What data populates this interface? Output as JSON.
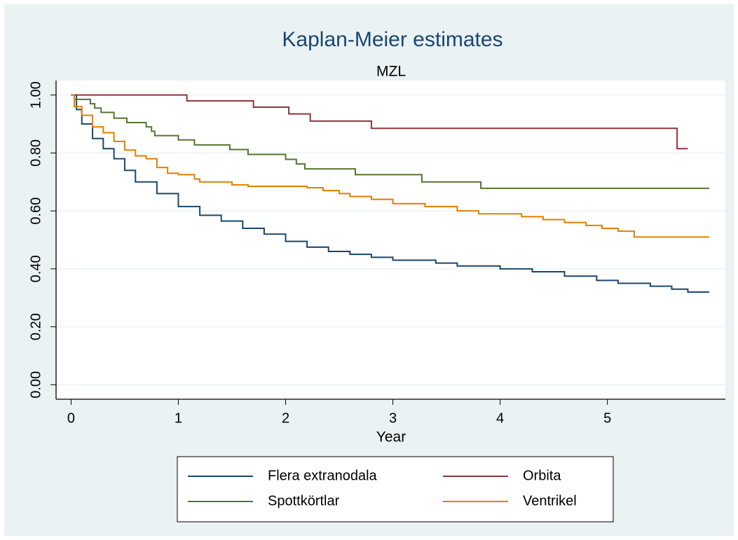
{
  "chart_data": {
    "type": "step",
    "title": "Kaplan-Meier estimates",
    "subtitle": "MZL",
    "x_label": "Year",
    "xlim": [
      -0.14,
      6.1
    ],
    "ylim": [
      -0.05,
      1.05
    ],
    "xticks": [
      0,
      1,
      2,
      3,
      4,
      5
    ],
    "yticks": [
      {
        "value": 0,
        "label": "0.00"
      },
      {
        "value": 0.2,
        "label": "0.20"
      },
      {
        "value": 0.4,
        "label": "0.40"
      },
      {
        "value": 0.6,
        "label": "0.60"
      },
      {
        "value": 0.8,
        "label": "0.80"
      },
      {
        "value": 1,
        "label": "1.00"
      }
    ],
    "grid": true,
    "legend": "bottom",
    "series": [
      {
        "name": "Flera extranodala",
        "color": "#1a476f",
        "x": [
          0,
          0.05,
          0.1,
          0.2,
          0.3,
          0.4,
          0.5,
          0.6,
          0.8,
          1.0,
          1.2,
          1.4,
          1.6,
          1.8,
          2.0,
          2.2,
          2.4,
          2.6,
          2.8,
          3.0,
          3.4,
          3.6,
          4.0,
          4.3,
          4.6,
          4.9,
          5.1,
          5.4,
          5.6,
          5.75,
          5.95
        ],
        "values": [
          1,
          0.95,
          0.9,
          0.85,
          0.815,
          0.78,
          0.74,
          0.7,
          0.66,
          0.615,
          0.585,
          0.565,
          0.54,
          0.52,
          0.495,
          0.475,
          0.46,
          0.45,
          0.44,
          0.43,
          0.42,
          0.41,
          0.4,
          0.39,
          0.375,
          0.36,
          0.35,
          0.34,
          0.33,
          0.32,
          0.32
        ]
      },
      {
        "name": "Orbita",
        "color": "#90353b",
        "x": [
          0,
          1.08,
          1.7,
          2.03,
          2.23,
          2.8,
          5.65,
          5.75
        ],
        "values": [
          1,
          0.98,
          0.958,
          0.935,
          0.91,
          0.885,
          0.815,
          0.815
        ]
      },
      {
        "name": "Spottkörtlar",
        "color": "#55752f",
        "x": [
          0,
          0.03,
          0.18,
          0.22,
          0.28,
          0.4,
          0.52,
          0.7,
          0.75,
          0.78,
          1.0,
          1.15,
          1.48,
          1.65,
          2.0,
          2.1,
          2.18,
          2.65,
          3.27,
          3.82,
          5.95
        ],
        "values": [
          1,
          0.985,
          0.97,
          0.955,
          0.94,
          0.92,
          0.905,
          0.89,
          0.875,
          0.86,
          0.845,
          0.828,
          0.812,
          0.795,
          0.778,
          0.762,
          0.745,
          0.725,
          0.7,
          0.678,
          0.678
        ]
      },
      {
        "name": "Ventrikel",
        "color": "#e37e00",
        "x": [
          0,
          0.03,
          0.1,
          0.2,
          0.3,
          0.4,
          0.5,
          0.6,
          0.7,
          0.8,
          0.9,
          1.0,
          1.15,
          1.2,
          1.5,
          1.65,
          2.2,
          2.35,
          2.5,
          2.6,
          2.8,
          3.0,
          3.3,
          3.6,
          3.8,
          4.2,
          4.4,
          4.6,
          4.8,
          4.95,
          5.1,
          5.25,
          5.95
        ],
        "values": [
          1,
          0.96,
          0.93,
          0.89,
          0.87,
          0.84,
          0.81,
          0.79,
          0.78,
          0.75,
          0.73,
          0.725,
          0.71,
          0.7,
          0.69,
          0.685,
          0.68,
          0.67,
          0.66,
          0.65,
          0.64,
          0.625,
          0.615,
          0.6,
          0.59,
          0.58,
          0.57,
          0.56,
          0.55,
          0.54,
          0.53,
          0.51,
          0.51
        ]
      }
    ]
  }
}
